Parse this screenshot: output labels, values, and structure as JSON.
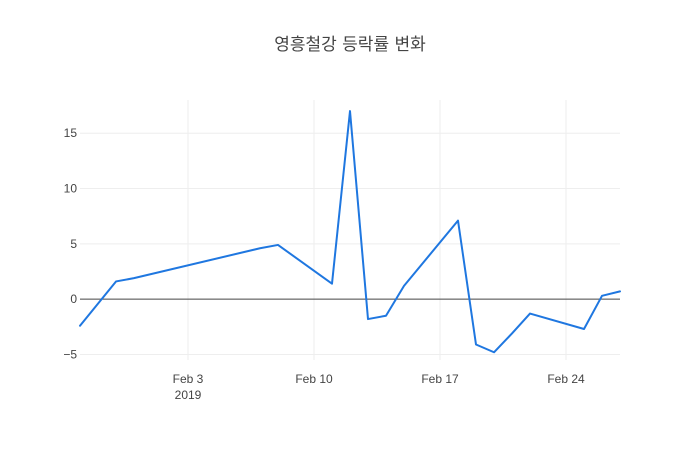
{
  "chart_data": {
    "type": "line",
    "title": "영흥철강 등락률 변화",
    "xlabel": "",
    "ylabel": "",
    "x_ticks": [
      {
        "date": "2019-02-03",
        "label": "Feb 3",
        "sublabel": "2019"
      },
      {
        "date": "2019-02-10",
        "label": "Feb 10",
        "sublabel": ""
      },
      {
        "date": "2019-02-17",
        "label": "Feb 17",
        "sublabel": ""
      },
      {
        "date": "2019-02-24",
        "label": "Feb 24",
        "sublabel": ""
      }
    ],
    "y_ticks": [
      -5,
      0,
      5,
      10,
      15
    ],
    "y_tick_labels": [
      "−5",
      "0",
      "5",
      "10",
      "15"
    ],
    "xlim": [
      "2019-01-28",
      "2019-02-27"
    ],
    "ylim": [
      -5.5,
      18
    ],
    "grid": true,
    "zero_line": true,
    "line_color": "#1f77e0",
    "series": [
      {
        "x": [
          "2019-01-28",
          "2019-01-30",
          "2019-01-31",
          "2019-02-07",
          "2019-02-08",
          "2019-02-11",
          "2019-02-12",
          "2019-02-13",
          "2019-02-14",
          "2019-02-15",
          "2019-02-18",
          "2019-02-19",
          "2019-02-20",
          "2019-02-21",
          "2019-02-22",
          "2019-02-25",
          "2019-02-26",
          "2019-02-27"
        ],
        "y": [
          -2.4,
          1.6,
          1.9,
          4.6,
          4.9,
          1.4,
          17.0,
          -1.8,
          -1.5,
          1.2,
          7.1,
          -4.1,
          -4.8,
          -3.1,
          -1.3,
          -2.7,
          0.3,
          0.7
        ]
      }
    ]
  }
}
